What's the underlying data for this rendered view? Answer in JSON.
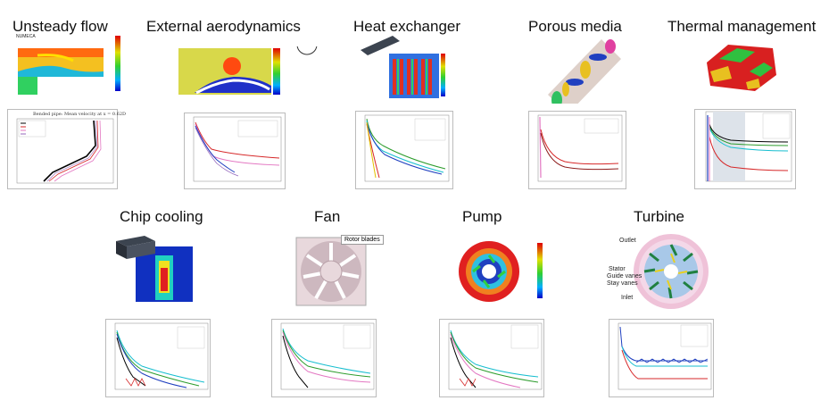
{
  "panels": [
    {
      "title": "Unsteady flow",
      "overlay_label": "NUMECA"
    },
    {
      "title": "External aerodynamics"
    },
    {
      "title": "Heat exchanger"
    },
    {
      "title": "Porous media"
    },
    {
      "title": "Thermal management"
    },
    {
      "title": "Chip cooling"
    },
    {
      "title": "Fan",
      "callout": "Rotor blades"
    },
    {
      "title": "Pump"
    },
    {
      "title": "Turbine",
      "labels": [
        "Outlet",
        "Stator",
        "Guide vanes",
        "Stay vanes",
        "Inlet"
      ]
    }
  ],
  "plots": {
    "bended_pipe_title": "Bended pipe: Mean velocity at x = 0.62D"
  },
  "colors": {
    "residual_series": [
      "#1f3fbf",
      "#2c9c2c",
      "#d62728",
      "#17becf",
      "#9467bd",
      "#000000",
      "#e377c2",
      "#8c564b"
    ],
    "rainbow": [
      "#0000c8",
      "#0096ff",
      "#00e0c0",
      "#30d030",
      "#e0e000",
      "#ff8000",
      "#e00000"
    ]
  }
}
